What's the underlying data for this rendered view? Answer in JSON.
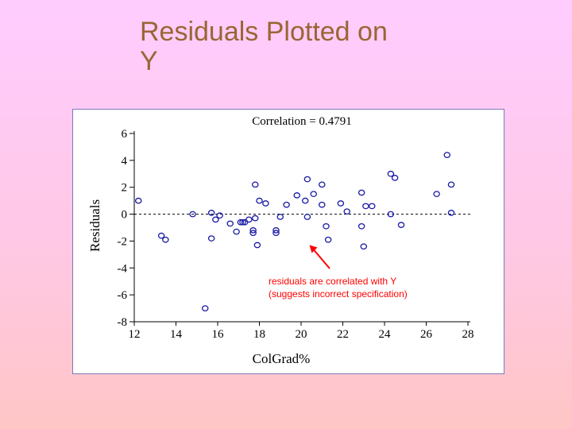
{
  "slide": {
    "title_line1": "Residuals Plotted on",
    "title_line2": "Y"
  },
  "colors": {
    "title": "#996633",
    "points": "#1a1aa6",
    "annotation": "#ff0000",
    "frame": "#7a7ab8"
  },
  "chart_data": {
    "type": "scatter",
    "title": "Correlation = 0.4791",
    "xlabel": "ColGrad%",
    "ylabel": "Residuals",
    "xlim": [
      12,
      28
    ],
    "ylim": [
      -8,
      6
    ],
    "xticks": [
      12,
      14,
      16,
      18,
      20,
      22,
      24,
      26,
      28
    ],
    "yticks": [
      6,
      4,
      2,
      0,
      -2,
      -4,
      -6,
      -8
    ],
    "reference_line": {
      "y": 0,
      "style": "dashed"
    },
    "grid": false,
    "annotation": {
      "line1": "residuals are correlated with Y",
      "line2": "(suggests incorrect specification)",
      "arrow_to": {
        "x": 20.4,
        "y": -2.3
      }
    },
    "points": [
      {
        "x": 12.2,
        "y": 1.0
      },
      {
        "x": 13.3,
        "y": -1.6
      },
      {
        "x": 13.5,
        "y": -1.9
      },
      {
        "x": 14.8,
        "y": 0.0
      },
      {
        "x": 15.4,
        "y": -7.0
      },
      {
        "x": 15.7,
        "y": 0.1
      },
      {
        "x": 15.7,
        "y": -1.8
      },
      {
        "x": 15.9,
        "y": -0.4
      },
      {
        "x": 16.1,
        "y": -0.1
      },
      {
        "x": 16.6,
        "y": -0.7
      },
      {
        "x": 16.9,
        "y": -1.3
      },
      {
        "x": 17.1,
        "y": -0.6
      },
      {
        "x": 17.2,
        "y": -0.6
      },
      {
        "x": 17.3,
        "y": -0.6
      },
      {
        "x": 17.5,
        "y": -0.4
      },
      {
        "x": 17.7,
        "y": -1.2
      },
      {
        "x": 17.7,
        "y": -1.4
      },
      {
        "x": 17.8,
        "y": -0.3
      },
      {
        "x": 17.8,
        "y": 2.2
      },
      {
        "x": 17.9,
        "y": -2.3
      },
      {
        "x": 18.0,
        "y": 1.0
      },
      {
        "x": 18.3,
        "y": 0.8
      },
      {
        "x": 18.8,
        "y": -1.4
      },
      {
        "x": 18.8,
        "y": -1.2
      },
      {
        "x": 19.0,
        "y": -0.2
      },
      {
        "x": 19.3,
        "y": 0.7
      },
      {
        "x": 19.8,
        "y": 1.4
      },
      {
        "x": 20.2,
        "y": 1.0
      },
      {
        "x": 20.3,
        "y": 2.6
      },
      {
        "x": 20.3,
        "y": -0.2
      },
      {
        "x": 20.6,
        "y": 1.5
      },
      {
        "x": 21.0,
        "y": 2.2
      },
      {
        "x": 21.0,
        "y": 0.7
      },
      {
        "x": 21.2,
        "y": -0.9
      },
      {
        "x": 21.3,
        "y": -1.9
      },
      {
        "x": 21.9,
        "y": 0.8
      },
      {
        "x": 22.2,
        "y": 0.2
      },
      {
        "x": 22.9,
        "y": 1.6
      },
      {
        "x": 22.9,
        "y": -0.9
      },
      {
        "x": 23.0,
        "y": -2.4
      },
      {
        "x": 23.1,
        "y": 0.6
      },
      {
        "x": 23.4,
        "y": 0.6
      },
      {
        "x": 24.3,
        "y": 3.0
      },
      {
        "x": 24.3,
        "y": 0.0
      },
      {
        "x": 24.5,
        "y": 2.7
      },
      {
        "x": 24.8,
        "y": -0.8
      },
      {
        "x": 26.5,
        "y": 1.5
      },
      {
        "x": 27.0,
        "y": 4.4
      },
      {
        "x": 27.2,
        "y": 2.2
      },
      {
        "x": 27.2,
        "y": 0.1
      }
    ]
  }
}
